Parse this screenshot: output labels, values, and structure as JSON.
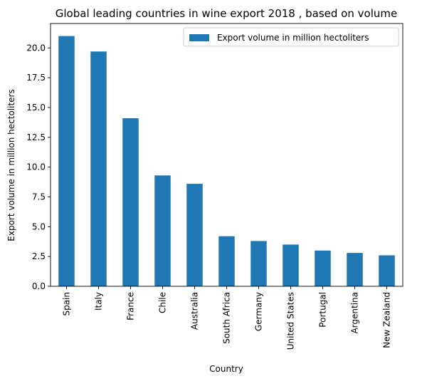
{
  "chart_data": {
    "type": "bar",
    "title": "Global leading countries in wine export 2018 , based on volume",
    "xlabel": "Country",
    "ylabel": "Export volume in million hectoliters",
    "categories": [
      "Spain",
      "Italy",
      "France",
      "Chile",
      "Australia",
      "South Africa",
      "Germany",
      "United States",
      "Portugal",
      "Argentina",
      "New Zealand"
    ],
    "series": [
      {
        "name": "Export volume in million hectoliters",
        "values": [
          21.0,
          19.7,
          14.1,
          9.3,
          8.6,
          4.2,
          3.8,
          3.5,
          3.0,
          2.8,
          2.6
        ]
      }
    ],
    "ylim": [
      0,
      22.05
    ],
    "yticks": [
      0.0,
      2.5,
      5.0,
      7.5,
      10.0,
      12.5,
      15.0,
      17.5,
      20.0
    ],
    "ytick_labels": [
      "0.0",
      "2.5",
      "5.0",
      "7.5",
      "10.0",
      "12.5",
      "15.0",
      "17.5",
      "20.0"
    ],
    "legend_position": "top-right",
    "grid": false,
    "bar_color": "#1f77b4"
  }
}
